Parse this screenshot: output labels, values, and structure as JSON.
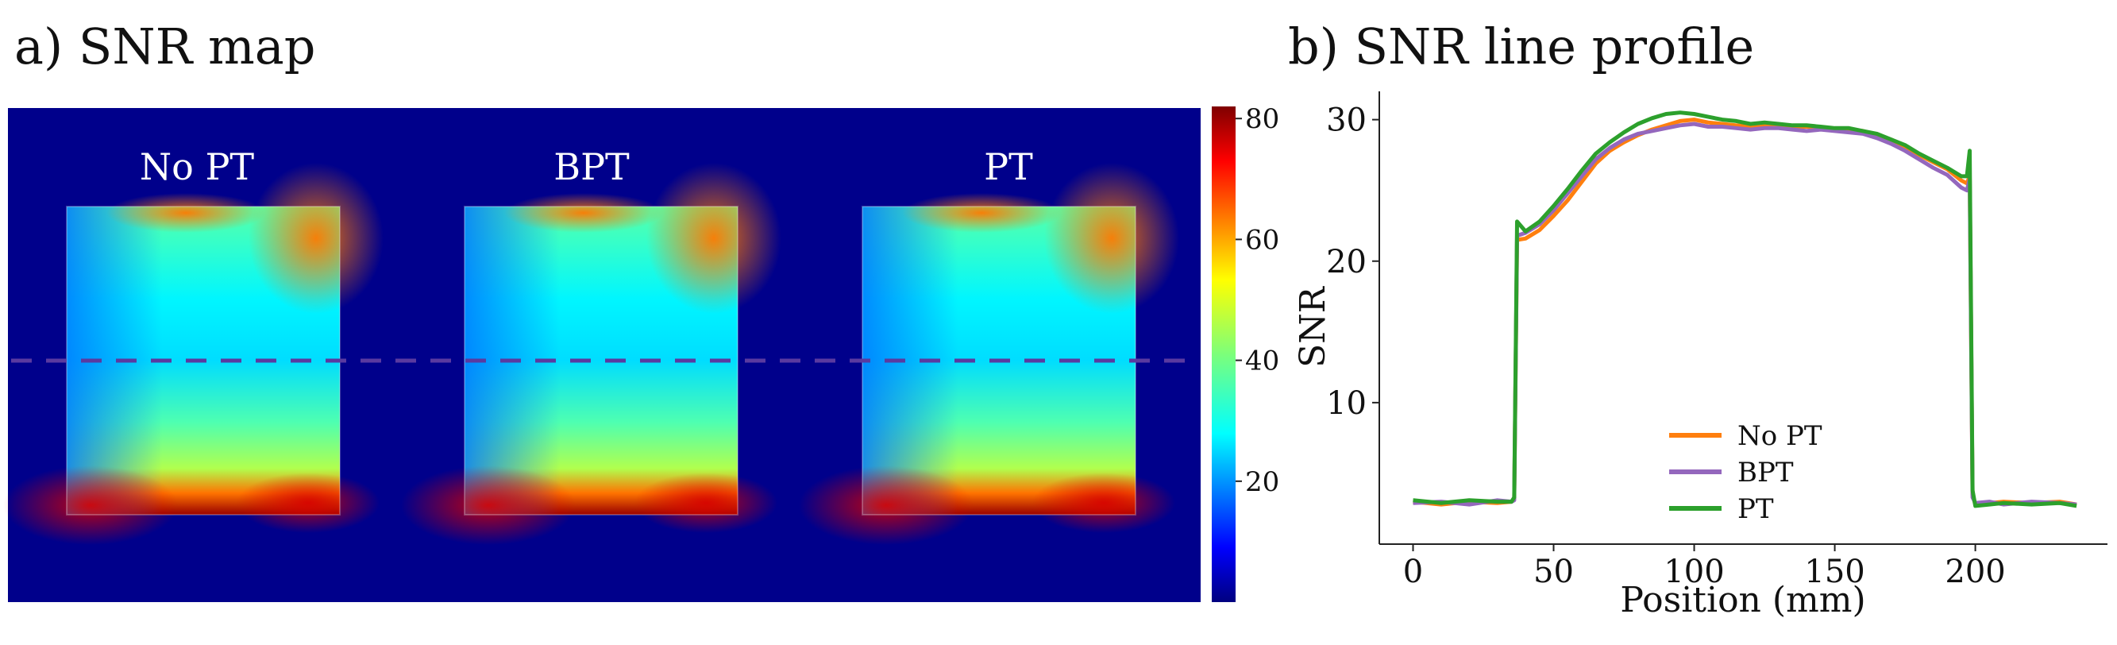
{
  "panel_a": {
    "title": "a) SNR map",
    "phantom_labels": [
      "No PT",
      "BPT",
      "PT"
    ],
    "colorbar": {
      "colormap": "jet",
      "range": [
        0,
        82
      ],
      "ticks": [
        20,
        40,
        60,
        80
      ]
    }
  },
  "panel_b": {
    "title": "b) SNR line profile"
  },
  "colors": {
    "map_background": "#00008b",
    "dashed_line": "#5a3aa0",
    "no_pt": "#ff7f0e",
    "bpt": "#9467bd",
    "pt": "#2ca02c",
    "axis": "#222222"
  },
  "chart_data": [
    {
      "type": "heatmap",
      "title": "a) SNR map",
      "panels": [
        "No PT",
        "BPT",
        "PT"
      ],
      "value_range": [
        0,
        82
      ],
      "colorbar_ticks": [
        20,
        40,
        60,
        80
      ],
      "description_of_values": {
        "background": 1,
        "phantom_center": 28,
        "phantom_left_edge": 20,
        "phantom_upper_band": 35,
        "phantom_lower_band": 45,
        "top_right_corner": 62,
        "bottom_edge_max": 80
      }
    },
    {
      "type": "line",
      "title": "b) SNR line profile",
      "xlabel": "Position (mm)",
      "ylabel": "SNR",
      "xlim": [
        -12,
        247
      ],
      "ylim": [
        0,
        32
      ],
      "xticks": [
        0,
        50,
        100,
        150,
        200
      ],
      "yticks": [
        10,
        20,
        30
      ],
      "legend_position": "lower-center",
      "x": [
        0,
        10,
        20,
        30,
        35,
        36,
        37,
        40,
        45,
        50,
        55,
        60,
        65,
        70,
        75,
        80,
        85,
        90,
        95,
        100,
        105,
        110,
        115,
        120,
        125,
        130,
        135,
        140,
        145,
        150,
        155,
        160,
        165,
        170,
        175,
        180,
        185,
        190,
        195,
        197,
        198,
        199,
        200,
        205,
        210,
        220,
        230,
        236
      ],
      "series": [
        {
          "name": "No PT",
          "values": [
            3.0,
            2.8,
            3.0,
            2.9,
            3.0,
            3.2,
            21.5,
            21.6,
            22.2,
            23.2,
            24.3,
            25.6,
            26.9,
            27.8,
            28.4,
            28.9,
            29.3,
            29.6,
            29.9,
            30.0,
            29.8,
            29.7,
            29.6,
            29.5,
            29.6,
            29.6,
            29.5,
            29.5,
            29.4,
            29.3,
            29.3,
            29.2,
            28.9,
            28.6,
            28.1,
            27.5,
            27.0,
            26.5,
            25.7,
            25.5,
            26.0,
            3.5,
            2.8,
            2.9,
            3.0,
            2.9,
            3.0,
            2.8
          ]
        },
        {
          "name": "BPT",
          "values": [
            2.9,
            3.0,
            2.8,
            3.1,
            3.0,
            3.1,
            21.8,
            22.0,
            22.6,
            23.6,
            24.8,
            26.0,
            27.2,
            28.0,
            28.6,
            29.0,
            29.2,
            29.4,
            29.6,
            29.7,
            29.5,
            29.5,
            29.4,
            29.3,
            29.4,
            29.4,
            29.3,
            29.2,
            29.3,
            29.2,
            29.1,
            29.0,
            28.7,
            28.3,
            27.8,
            27.2,
            26.6,
            26.1,
            25.2,
            25.0,
            25.8,
            3.3,
            2.9,
            3.0,
            2.8,
            3.0,
            2.9,
            2.8
          ]
        },
        {
          "name": "PT",
          "values": [
            3.1,
            2.9,
            3.1,
            3.0,
            3.0,
            3.3,
            22.8,
            22.1,
            22.8,
            23.9,
            25.1,
            26.4,
            27.6,
            28.4,
            29.1,
            29.7,
            30.1,
            30.4,
            30.5,
            30.4,
            30.2,
            30.0,
            29.9,
            29.7,
            29.8,
            29.7,
            29.6,
            29.6,
            29.5,
            29.4,
            29.4,
            29.2,
            29.0,
            28.6,
            28.2,
            27.6,
            27.1,
            26.6,
            26.0,
            26.0,
            27.8,
            3.8,
            2.7,
            2.8,
            2.9,
            2.8,
            2.9,
            2.7
          ]
        }
      ]
    }
  ]
}
